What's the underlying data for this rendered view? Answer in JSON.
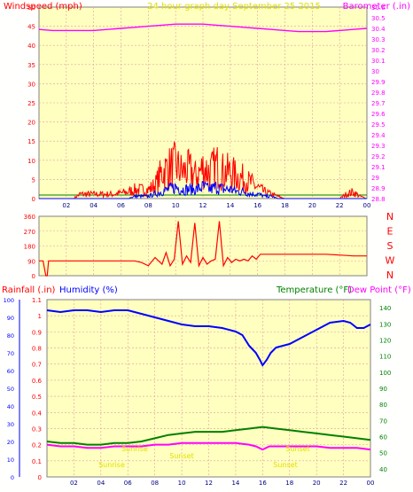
{
  "page": {
    "title": "24 hour graph day   September 25 2015",
    "colors": {
      "plot_bg": "#ffffc0",
      "grid": "#e0a0a0",
      "frame": "#808080",
      "wind": "#ff0000",
      "gust_fill": "#0000ff",
      "green": "#008000",
      "baro": "#ff00ff",
      "humidity": "#0000ff",
      "dewpoint": "#ff00ff",
      "yellow_text": "#e0e000"
    }
  },
  "chart_data": [
    {
      "id": "wind_baro",
      "type": "line",
      "title": "24 hour graph day   September 25 2015",
      "ylabel_left": "Windspeed (mph)",
      "ylabel_right": "Barometer (.in)",
      "x_ticks": [
        "02",
        "04",
        "06",
        "08",
        "10",
        "12",
        "14",
        "16",
        "18",
        "20",
        "22",
        "00"
      ],
      "x_range": [
        0,
        24
      ],
      "ylim_left": [
        0,
        50
      ],
      "y_ticks_left": [
        "0",
        "5",
        "10",
        "15",
        "20",
        "25",
        "30",
        "35",
        "40",
        "45",
        "50"
      ],
      "ylim_right": [
        28.8,
        30.6
      ],
      "y_ticks_right": [
        "28.8",
        "28.9",
        "29",
        "29.1",
        "29.2",
        "29.3",
        "29.4",
        "29.5",
        "29.6",
        "29.7",
        "29.8",
        "29.9",
        "30",
        "30.1",
        "30.2",
        "30.3",
        "30.4",
        "30.5",
        "30.6"
      ],
      "series": [
        {
          "kind": "barometer",
          "x": [
            0,
            1,
            2,
            3,
            4,
            5,
            6,
            7,
            8,
            9,
            10,
            11,
            12,
            13,
            14,
            15,
            16,
            17,
            18,
            19,
            20,
            21,
            22,
            23,
            24
          ],
          "values": [
            30.39,
            30.38,
            30.38,
            30.38,
            30.38,
            30.39,
            30.4,
            30.41,
            30.42,
            30.43,
            30.44,
            30.44,
            30.44,
            30.43,
            30.42,
            30.41,
            30.4,
            30.39,
            30.38,
            30.37,
            30.37,
            30.37,
            30.38,
            30.39,
            30.4
          ]
        },
        {
          "kind": "gust",
          "x": [
            0,
            2.5,
            3,
            5.5,
            6.5,
            7,
            8,
            8.5,
            9,
            9.5,
            10,
            10.5,
            11,
            11.5,
            12,
            12.5,
            13,
            13.5,
            14,
            14.5,
            15,
            15.5,
            16,
            16.5,
            17,
            17.5,
            18,
            19,
            20,
            21,
            22,
            22.5,
            23,
            23.5,
            24
          ],
          "values": [
            0,
            0,
            2,
            2,
            3,
            4,
            4,
            6,
            12,
            14,
            15,
            12,
            13,
            10,
            14,
            12,
            15,
            12,
            12,
            10,
            9,
            7,
            5,
            3,
            2,
            1,
            0,
            0,
            0,
            0,
            0,
            2,
            3,
            1,
            0
          ]
        },
        {
          "kind": "average",
          "x": [
            0,
            6.5,
            7,
            8,
            8.5,
            9,
            9.5,
            10,
            10.5,
            11,
            11.5,
            12,
            12.5,
            13,
            13.5,
            14,
            14.5,
            15,
            15.5,
            16,
            16.5,
            17,
            17.5,
            18,
            24
          ],
          "values": [
            0,
            0,
            1,
            1,
            2,
            3,
            4,
            5,
            4,
            4,
            4,
            5,
            4,
            5,
            4,
            4,
            3,
            3,
            2,
            2,
            1,
            1,
            0,
            0,
            0
          ]
        }
      ]
    },
    {
      "id": "direction",
      "type": "line",
      "x_range": [
        0,
        24
      ],
      "ylim": [
        0,
        360
      ],
      "y_ticks": [
        "0",
        "90",
        "180",
        "270",
        "360"
      ],
      "compass": [
        "N",
        "W",
        "S",
        "E",
        "N"
      ],
      "series": [
        {
          "kind": "direction",
          "x": [
            0,
            0.3,
            0.5,
            0.6,
            0.7,
            1,
            2,
            3,
            4,
            5,
            6,
            7,
            7.5,
            8,
            8.5,
            9,
            9.3,
            9.6,
            9.9,
            10.2,
            10.5,
            10.8,
            11.1,
            11.4,
            11.7,
            12,
            12.3,
            12.6,
            12.9,
            13.2,
            13.5,
            13.8,
            14.1,
            14.4,
            14.7,
            15,
            15.3,
            15.6,
            15.9,
            16.2,
            16.5,
            17,
            18,
            19,
            20,
            21,
            22,
            23,
            24
          ],
          "values": [
            90,
            90,
            0,
            0,
            90,
            90,
            90,
            90,
            90,
            90,
            90,
            90,
            80,
            60,
            110,
            70,
            140,
            60,
            100,
            330,
            70,
            120,
            80,
            320,
            60,
            110,
            70,
            90,
            100,
            330,
            60,
            110,
            80,
            100,
            90,
            100,
            90,
            120,
            100,
            130,
            130,
            130,
            130,
            130,
            130,
            130,
            125,
            120,
            120
          ]
        }
      ]
    },
    {
      "id": "rain_hum_temp",
      "type": "line",
      "ylabel_left": "Rainfall (.in)",
      "ylabel_left2": "Humidity (%)",
      "ylabel_right": "Temperature (°F)",
      "ylabel_right2": "Dew Point (°F)",
      "x_ticks": [
        "02",
        "04",
        "06",
        "08",
        "10",
        "12",
        "14",
        "16",
        "18",
        "20",
        "22",
        "00"
      ],
      "x_range": [
        0,
        24
      ],
      "ylim_rain": [
        0,
        1.1
      ],
      "y_ticks_rain": [
        "0",
        "0.1",
        "0.2",
        "0.3",
        "0.4",
        "0.5",
        "0.6",
        "0.7",
        "0.8",
        "0.9",
        "1",
        "1.1"
      ],
      "ylim_humidity": [
        0,
        100
      ],
      "y_ticks_humidity": [
        "0",
        "10",
        "20",
        "30",
        "40",
        "50",
        "60",
        "70",
        "80",
        "90",
        "100"
      ],
      "ylim_temp": [
        35,
        145
      ],
      "y_ticks_temp": [
        "40",
        "50",
        "60",
        "70",
        "80",
        "90",
        "100",
        "110",
        "120",
        "130",
        "140"
      ],
      "annotations": [
        "Sunrise",
        "Sunrise",
        "Sunset",
        "Sunset",
        "Sunset"
      ],
      "series": [
        {
          "kind": "humidity",
          "x": [
            0,
            1,
            2,
            3,
            4,
            5,
            6,
            7,
            8,
            9,
            10,
            11,
            12,
            13,
            14,
            14.5,
            15,
            15.5,
            15.8,
            16,
            16.3,
            16.6,
            17,
            18,
            19,
            20,
            21,
            22,
            22.5,
            23,
            23.5,
            24
          ],
          "values": [
            94,
            93,
            94,
            94,
            93,
            94,
            94,
            92,
            90,
            88,
            86,
            85,
            85,
            84,
            82,
            80,
            74,
            70,
            66,
            63,
            66,
            70,
            73,
            75,
            79,
            83,
            87,
            88,
            87,
            84,
            84,
            86
          ]
        },
        {
          "kind": "temperature",
          "x": [
            0,
            1,
            2,
            3,
            4,
            5,
            6,
            7,
            8,
            9,
            10,
            11,
            12,
            13,
            14,
            15,
            16,
            17,
            18,
            19,
            20,
            21,
            22,
            23,
            24
          ],
          "values": [
            57,
            56,
            56,
            55,
            55,
            56,
            56,
            57,
            59,
            61,
            62,
            63,
            63,
            63,
            64,
            65,
            66,
            65,
            64,
            63,
            62,
            61,
            60,
            59,
            58
          ]
        },
        {
          "kind": "dewpoint",
          "x": [
            0,
            1,
            2,
            3,
            4,
            5,
            6,
            7,
            8,
            9,
            10,
            11,
            12,
            13,
            14,
            15,
            15.5,
            16,
            16.5,
            17,
            18,
            19,
            20,
            21,
            22,
            23,
            24
          ],
          "values": [
            55,
            54,
            54,
            53,
            53,
            54,
            54,
            54,
            55,
            55,
            56,
            56,
            56,
            56,
            56,
            55,
            54,
            52,
            54,
            54,
            54,
            54,
            54,
            53,
            53,
            53,
            52
          ]
        }
      ]
    }
  ]
}
